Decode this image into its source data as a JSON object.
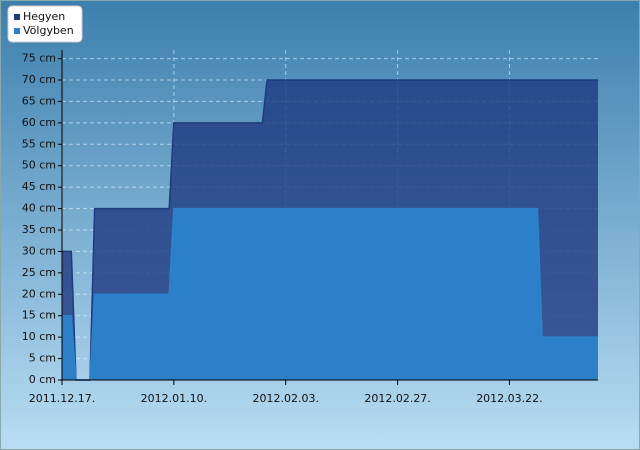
{
  "chart_data": {
    "type": "area",
    "x": [
      "2011.12.17.",
      "2011.12.19.",
      "2011.12.20.",
      "2011.12.23.",
      "2011.12.24.",
      "2012.01.09.",
      "2012.01.10.",
      "2012.01.29.",
      "2012.01.30.",
      "2012.03.28.",
      "2012.03.29.",
      "2012.04.10."
    ],
    "series": [
      {
        "name": "Hegyen",
        "color": "#1f3a80",
        "values": [
          30,
          30,
          0,
          0,
          40,
          40,
          60,
          60,
          70,
          70,
          70,
          70
        ]
      },
      {
        "name": "Völgyben",
        "color": "#2c82cc",
        "values": [
          15,
          15,
          0,
          0,
          20,
          20,
          40,
          40,
          40,
          40,
          10,
          10
        ]
      }
    ],
    "xlim": [
      "2011.12.17.",
      "2012.04.10."
    ],
    "xticks": [
      "2011.12.17.",
      "2012.01.10.",
      "2012.02.03.",
      "2012.02.27.",
      "2012.03.22."
    ],
    "ylim": [
      0,
      77
    ],
    "yticks": [
      {
        "value": 0,
        "label": "0 cm"
      },
      {
        "value": 5,
        "label": "5 cm"
      },
      {
        "value": 10,
        "label": "10 cm"
      },
      {
        "value": 15,
        "label": "15 cm"
      },
      {
        "value": 20,
        "label": "20 cm"
      },
      {
        "value": 25,
        "label": "25 cm"
      },
      {
        "value": 30,
        "label": "30 cm"
      },
      {
        "value": 35,
        "label": "35 cm"
      },
      {
        "value": 40,
        "label": "40 cm"
      },
      {
        "value": 45,
        "label": "45 cm"
      },
      {
        "value": 50,
        "label": "50 cm"
      },
      {
        "value": 55,
        "label": "55 cm"
      },
      {
        "value": 60,
        "label": "60 cm"
      },
      {
        "value": 65,
        "label": "65 cm"
      },
      {
        "value": 70,
        "label": "70 cm"
      },
      {
        "value": 75,
        "label": "75 cm"
      }
    ],
    "grid": true,
    "legend": "top-left"
  }
}
